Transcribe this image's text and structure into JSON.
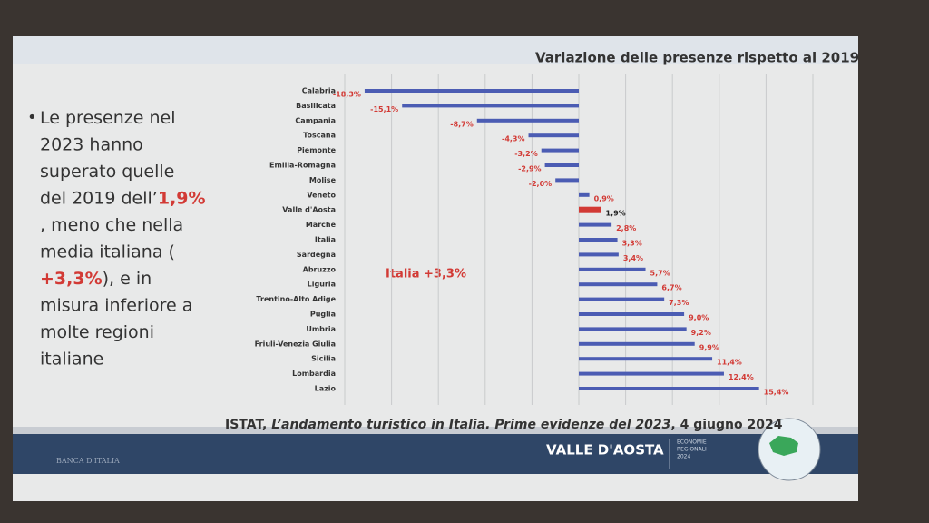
{
  "chart_data": {
    "type": "hbar",
    "title": "Variazione delle presenze rispetto al 2019",
    "categories": [
      "Calabria",
      "Basilicata",
      "Campania",
      "Toscana",
      "Piemonte",
      "Emilia-Romagna",
      "Molise",
      "Veneto",
      "Valle d'Aosta",
      "Marche",
      "Italia",
      "Sardegna",
      "Abruzzo",
      "Liguria",
      "Trentino-Alto Adige",
      "Puglia",
      "Umbria",
      "Friuli-Venezia Giulia",
      "Sicilia",
      "Lombardia",
      "Lazio"
    ],
    "values": [
      -18.3,
      -15.1,
      -8.7,
      -4.3,
      -3.2,
      -2.9,
      -2.0,
      0.9,
      1.9,
      2.8,
      3.3,
      3.4,
      5.7,
      6.7,
      7.3,
      9.0,
      9.2,
      9.9,
      11.4,
      12.4,
      15.4
    ],
    "value_labels": [
      "-18,3%",
      "-15,1%",
      "-8,7%",
      "-4,3%",
      "-3,2%",
      "-2,9%",
      "-2,0%",
      "0,9%",
      "1,9%",
      "2,8%",
      "3,3%",
      "3,4%",
      "5,7%",
      "6,7%",
      "7,3%",
      "9,0%",
      "9,2%",
      "9,9%",
      "11,4%",
      "12,4%",
      "15,4%"
    ],
    "colors": [
      "#4b5cb3",
      "#4b5cb3",
      "#4b5cb3",
      "#4b5cb3",
      "#4b5cb3",
      "#4b5cb3",
      "#4b5cb3",
      "#4b5cb3",
      "#d23a35",
      "#4b5cb3",
      "#4b5cb3",
      "#4b5cb3",
      "#4b5cb3",
      "#4b5cb3",
      "#4b5cb3",
      "#4b5cb3",
      "#4b5cb3",
      "#4b5cb3",
      "#4b5cb3",
      "#4b5cb3",
      "#4b5cb3"
    ],
    "xlim": [
      -20,
      20
    ],
    "xticks": [
      -20,
      -16,
      -12,
      -8,
      -4,
      0,
      4,
      8,
      12,
      16,
      20
    ],
    "grid": true,
    "annotation": "Italia +3,3%"
  },
  "slide": {
    "bullet": [
      "Le presenze nel 2023 hanno superato quelle del 2019 dell’",
      "1,9%",
      ", meno che nella media italiana (",
      "+3,3%",
      "), e in misura inferiore a molte regioni italiane"
    ],
    "source": [
      "ISTAT, ",
      "L’andamento turistico in Italia. Prime evidenze del 2023",
      ", 4 giugno 2024"
    ],
    "footer_region": "VALLE D'AOSTA",
    "footer_series": [
      "ECONOMIE",
      "REGIONALI",
      "2024"
    ],
    "footer_bank": "BANCA D'ITALIA"
  }
}
